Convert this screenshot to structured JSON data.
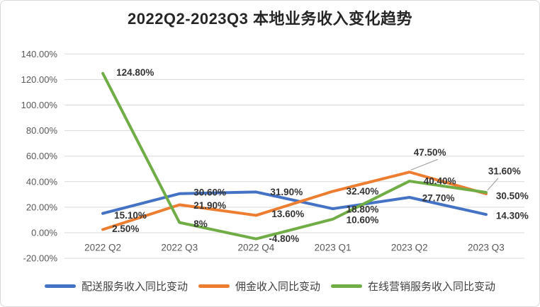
{
  "title": "2022Q2-2023Q3 本地业务收入变化趋势",
  "chart_data": {
    "type": "line",
    "title": "2022Q2-2023Q3 本地业务收入变化趋势",
    "categories": [
      "2022 Q2",
      "2022 Q3",
      "2022 Q4",
      "2023 Q1",
      "2023 Q2",
      "2023 Q3"
    ],
    "series": [
      {
        "key": "delivery",
        "name": "配送服务收入同比变动",
        "color": "#4472C4",
        "values": [
          15.1,
          30.6,
          31.9,
          18.8,
          27.7,
          14.3
        ],
        "labels": [
          "15.10%",
          "30.60%",
          "31.90%",
          "18.80%",
          "27.70%",
          "14.30%"
        ]
      },
      {
        "key": "commission",
        "name": "佣金收入同比变动",
        "color": "#ED7D31",
        "values": [
          2.5,
          21.9,
          13.6,
          32.4,
          47.5,
          30.5
        ],
        "labels": [
          "2.50%",
          "21.90%",
          "13.60%",
          "32.40%",
          "47.50%",
          "30.50%"
        ]
      },
      {
        "key": "online-marketing",
        "name": "在线营销服务收入同比变动",
        "color": "#70AD47",
        "values": [
          124.8,
          8,
          -4.8,
          10.6,
          40.4,
          31.6
        ],
        "labels": [
          "124.80%",
          "8%",
          "-4.80%",
          "10.60%",
          "40.40%",
          "31.60%"
        ]
      }
    ],
    "y_ticks": [
      {
        "value": 140,
        "label": "140.00%"
      },
      {
        "value": 120,
        "label": "120.00%"
      },
      {
        "value": 100,
        "label": "100.00%"
      },
      {
        "value": 80,
        "label": "80.00%"
      },
      {
        "value": 60,
        "label": "60.00%"
      },
      {
        "value": 40,
        "label": "40.00%"
      },
      {
        "value": 20,
        "label": "20.00%"
      },
      {
        "value": 0,
        "label": "0.00%"
      },
      {
        "value": -20,
        "label": "-20.00%"
      }
    ],
    "ylim": [
      -20,
      140
    ],
    "xlabel": "",
    "ylabel": "",
    "grid": true,
    "legend_position": "bottom"
  },
  "colors": {
    "series_blue": "#4472C4",
    "series_orange": "#ED7D31",
    "series_green": "#70AD47",
    "grid": "#D9D9D9",
    "axis_text": "#595959",
    "data_label": "#333333",
    "leader_line": "#A6A6A6",
    "card_border": "#D9D9D9",
    "title_text": "#262626"
  }
}
